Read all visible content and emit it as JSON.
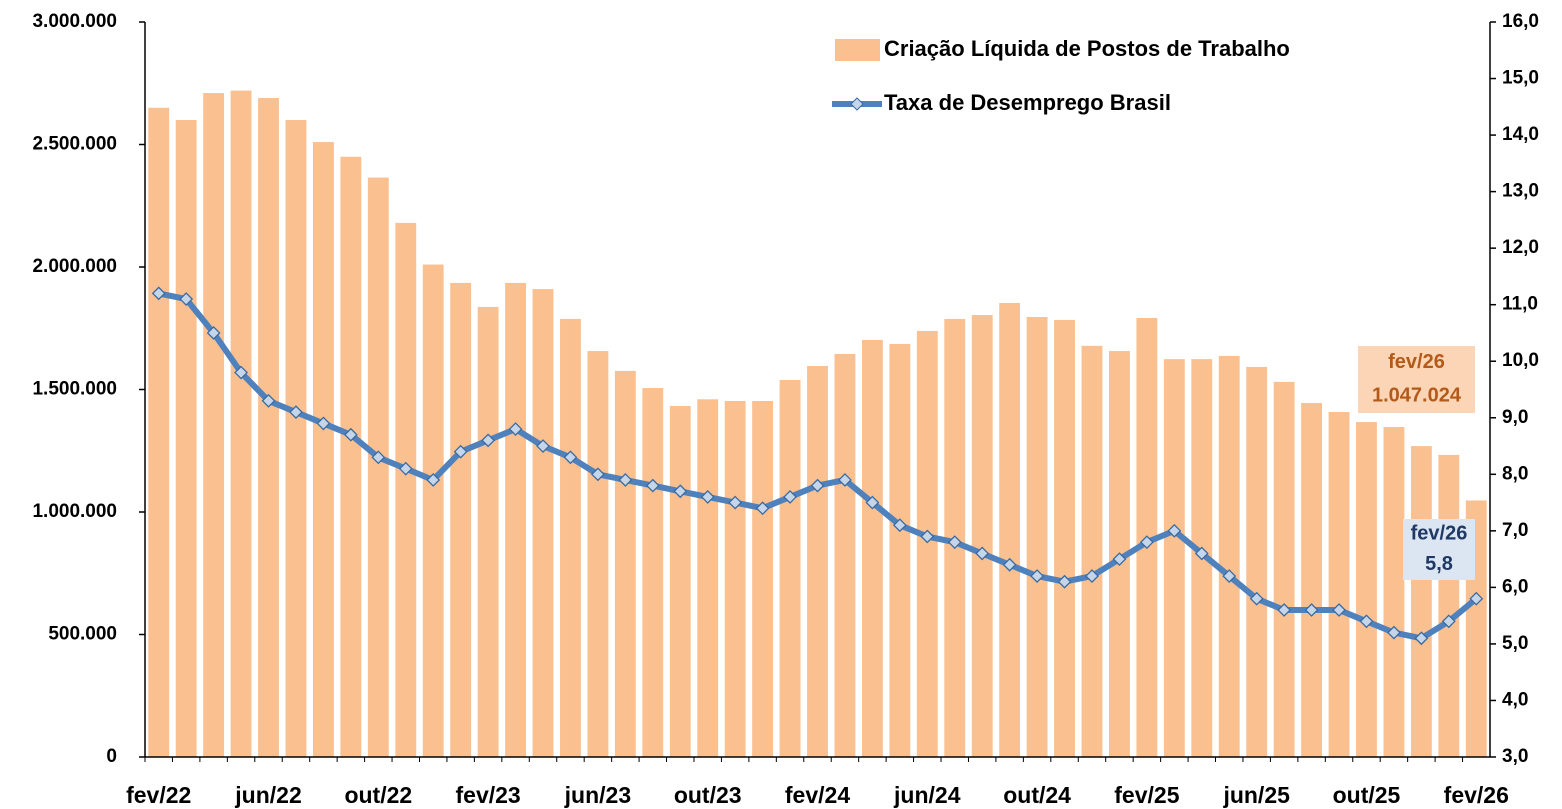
{
  "chart_data": {
    "type": "bar_line",
    "categories": [
      "fev/22",
      null,
      null,
      null,
      "jun/22",
      null,
      null,
      null,
      "out/22",
      null,
      null,
      null,
      "fev/23",
      null,
      null,
      null,
      "jun/23",
      null,
      null,
      null,
      "out/23",
      null,
      null,
      null,
      "fev/24",
      null,
      null,
      null,
      "jun/24",
      null,
      null,
      null,
      "out/24",
      null,
      null,
      null,
      "fev/25",
      null,
      null,
      null,
      "jun/25",
      null,
      null,
      null,
      "out/25",
      null,
      null,
      null,
      "fev/26"
    ],
    "series": [
      {
        "name": "Criação Líquida de Postos de Trabalho",
        "type": "bar",
        "axis": "y",
        "color": "#fac090",
        "values": [
          2650000,
          2600000,
          2710000,
          2720000,
          2690000,
          2600000,
          2510000,
          2450000,
          2365000,
          2180000,
          2010000,
          1935000,
          1837000,
          1935000,
          1910000,
          1788000,
          1657000,
          1576000,
          1506000,
          1433000,
          1460000,
          1453000,
          1453000,
          1539000,
          1596000,
          1645000,
          1702000,
          1686000,
          1739000,
          1788000,
          1804000,
          1853000,
          1796000,
          1784000,
          1678000,
          1657000,
          1792000,
          1624000,
          1624000,
          1637000,
          1592000,
          1531000,
          1445000,
          1408000,
          1367000,
          1347000,
          1269000,
          1233000,
          1047024
        ]
      },
      {
        "name": "Taxa de Desemprego Brasil",
        "type": "line",
        "axis": "y2",
        "color": "#4f81bd",
        "values": [
          11.2,
          11.1,
          10.5,
          9.8,
          9.3,
          9.1,
          8.9,
          8.7,
          8.3,
          8.1,
          7.9,
          8.4,
          8.6,
          8.8,
          8.5,
          8.3,
          8.0,
          7.9,
          7.8,
          7.7,
          7.6,
          7.5,
          7.4,
          7.6,
          7.8,
          7.9,
          7.5,
          7.1,
          6.9,
          6.8,
          6.6,
          6.4,
          6.2,
          6.1,
          6.2,
          6.5,
          6.8,
          7.0,
          6.6,
          6.2,
          5.8,
          5.6,
          5.6,
          5.6,
          5.4,
          5.2,
          5.1,
          5.4,
          5.8
        ]
      }
    ],
    "ylim": [
      0,
      3000000
    ],
    "yticks": [
      0,
      {
        "value": 500000,
        "label": "500.000"
      },
      {
        "value": 1000000,
        "label": "1.000.000"
      },
      {
        "value": 1500000,
        "label": "1.500.000"
      },
      {
        "value": 2000000,
        "label": "2.000.000"
      },
      {
        "value": 2500000,
        "label": "2.500.000"
      },
      {
        "value": 3000000,
        "label": "3.000.000"
      }
    ],
    "y2lim": [
      3,
      16
    ],
    "y2ticks": [
      {
        "value": 3,
        "label": "3,0"
      },
      {
        "value": 4,
        "label": "4,0"
      },
      {
        "value": 5,
        "label": "5,0"
      },
      {
        "value": 6,
        "label": "6,0"
      },
      {
        "value": 7,
        "label": "7,0"
      },
      {
        "value": 8,
        "label": "8,0"
      },
      {
        "value": 9,
        "label": "9,0"
      },
      {
        "value": 10,
        "label": "10,0"
      },
      {
        "value": 11,
        "label": "11,0"
      },
      {
        "value": 12,
        "label": "12,0"
      },
      {
        "value": 13,
        "label": "13,0"
      },
      {
        "value": 14,
        "label": "14,0"
      },
      {
        "value": 15,
        "label": "15,0"
      },
      {
        "value": 16,
        "label": "16,0"
      }
    ],
    "annotations": [
      {
        "lines": [
          "fev/26",
          "1.047.024"
        ],
        "color": "#b35a1a",
        "background": "#fbd5b5"
      },
      {
        "lines": [
          "fev/26",
          "5,8"
        ],
        "color": "#1f3864",
        "background": "#dce6f2"
      }
    ]
  }
}
